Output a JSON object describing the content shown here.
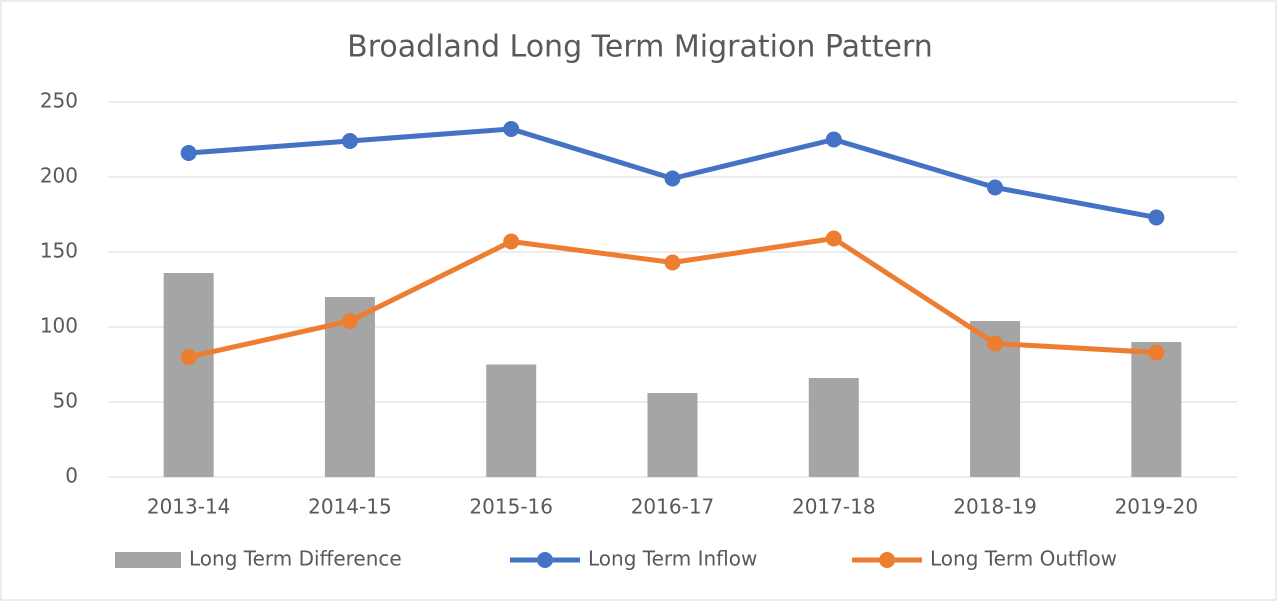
{
  "chart_data": {
    "type": "combo",
    "title": "Broadland Long Term Migration Pattern",
    "categories": [
      "2013-14",
      "2014-15",
      "2015-16",
      "2016-17",
      "2017-18",
      "2018-19",
      "2019-20"
    ],
    "series": [
      {
        "name": "Long Term Difference",
        "type": "bar",
        "color": "#a5a5a5",
        "values": [
          136,
          120,
          75,
          56,
          66,
          104,
          90
        ]
      },
      {
        "name": "Long Term Inflow",
        "type": "line",
        "color": "#4472c4",
        "values": [
          216,
          224,
          232,
          199,
          225,
          193,
          173
        ]
      },
      {
        "name": "Long Term Outflow",
        "type": "line",
        "color": "#ed7d31",
        "values": [
          80,
          104,
          157,
          143,
          159,
          89,
          83
        ]
      }
    ],
    "ylim": [
      0,
      250
    ],
    "yticks": [
      0,
      50,
      100,
      150,
      200,
      250
    ],
    "grid": true,
    "legend": "bottom"
  }
}
